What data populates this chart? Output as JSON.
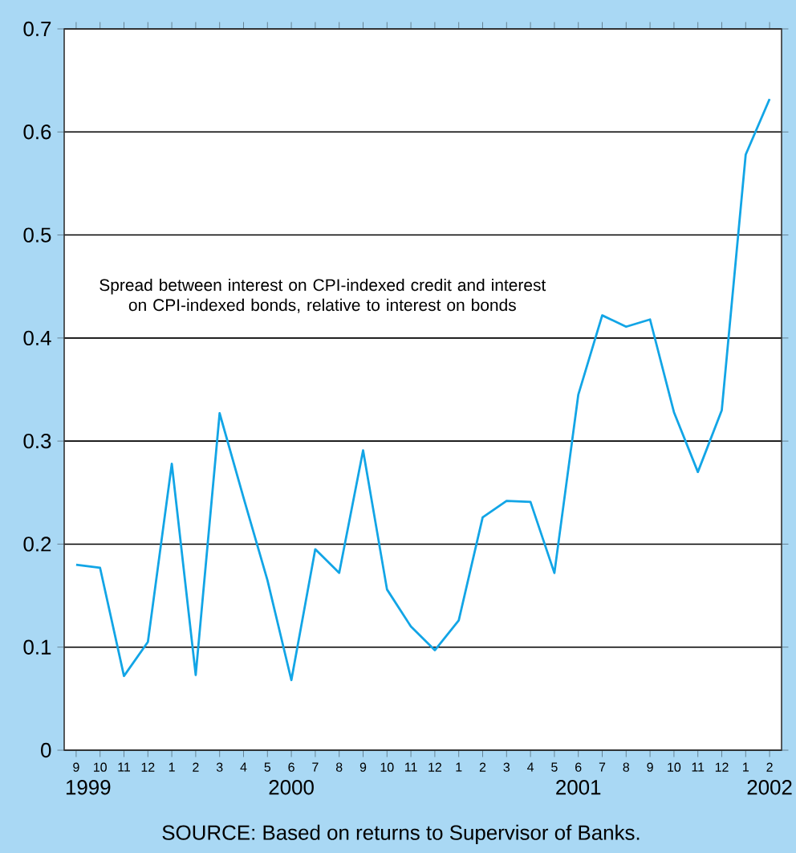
{
  "chart_data": {
    "type": "line",
    "categories": [
      "9",
      "10",
      "11",
      "12",
      "1",
      "2",
      "3",
      "4",
      "5",
      "6",
      "7",
      "8",
      "9",
      "10",
      "11",
      "12",
      "1",
      "2",
      "3",
      "4",
      "5",
      "6",
      "7",
      "8",
      "9",
      "10",
      "11",
      "12",
      "1",
      "2"
    ],
    "values": [
      0.18,
      0.177,
      0.072,
      0.105,
      0.278,
      0.073,
      0.327,
      0.245,
      0.165,
      0.068,
      0.195,
      0.172,
      0.291,
      0.156,
      0.12,
      0.097,
      0.126,
      0.226,
      0.242,
      0.241,
      0.172,
      0.345,
      0.422,
      0.411,
      0.418,
      0.328,
      0.27,
      0.33,
      0.578,
      0.632
    ],
    "color": "#12a5e6",
    "ylim": [
      0,
      0.7
    ],
    "yticks": [
      0,
      0.1,
      0.2,
      0.3,
      0.4,
      0.5,
      0.6,
      0.7
    ],
    "grid": "y",
    "annotations": [
      "Spread between interest on CPI-indexed credit and interest on CPI-indexed bonds, relative to interest on bonds",
      "1999",
      "2000",
      "2001",
      "2002",
      "SOURCE: Based on returns to Supervisor of Banks."
    ]
  }
}
